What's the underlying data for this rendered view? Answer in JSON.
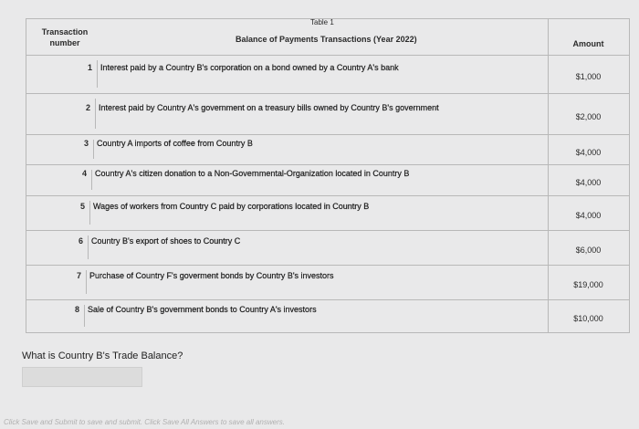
{
  "header": {
    "table_label": "Table 1",
    "title": "Balance of Payments Transactions (Year 2022)",
    "col_number": "Transaction number",
    "col_amount": "Amount"
  },
  "table": {
    "rows": [
      [
        "1",
        "Interest paid by a Country B's corporation on a bond owned by a  Country A's bank",
        "$1,000"
      ],
      [
        "2",
        "Interest paid by Country A's government on a treasury bills owned by Country B's government",
        "$2,000"
      ],
      [
        "3",
        "Country A imports of coffee from Country B",
        "$4,000"
      ],
      [
        "4",
        "Country A's citizen donation to a Non-Governmental-Organization located in Country B",
        "$4,000"
      ],
      [
        "5",
        "Wages of workers from Country C paid by corporations located in Country B",
        "$4,000"
      ],
      [
        "6",
        "Country B's export of shoes to Country C",
        "$6,000"
      ],
      [
        "7",
        "Purchase of Country F's goverment bonds by Country B's investors",
        "$19,000"
      ],
      [
        "8",
        "Sale of Country B's government bonds to Country A's investors",
        "$10,000"
      ]
    ]
  },
  "question": "What is Country B's Trade Balance?",
  "footer": "Click Save and Submit to save and submit. Click Save All Answers to save all answers."
}
